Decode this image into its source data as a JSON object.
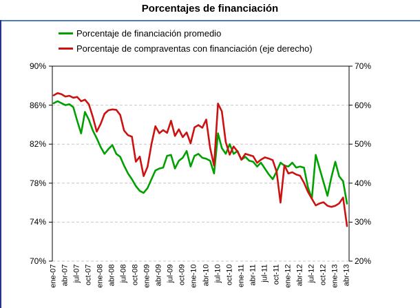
{
  "title": "Porcentajes de financiación",
  "colors": {
    "green_series": "#00A000",
    "red_series": "#CC1111",
    "title_rule_blue": "#4A7EBB",
    "panel_border_blue": "#27348B",
    "gridline_gray": "#C6C6C6",
    "axis_black": "#000000"
  },
  "legend": [
    {
      "label": "Porcentaje de financiación promedio",
      "color": "#00A000"
    },
    {
      "label": "Porcentaje de compraventas con financiación (eje derecho)",
      "color": "#CC1111"
    }
  ],
  "chart_data": {
    "type": "line",
    "x_tick_labels": [
      "ene-07",
      "abr-07",
      "jul-07",
      "oct-07",
      "ene-08",
      "abr-08",
      "jul-08",
      "oct-08",
      "ene-09",
      "abr-09",
      "jul-09",
      "oct-09",
      "ene-10",
      "abr-10",
      "jul-10",
      "oct-10",
      "ene-11",
      "abr-11",
      "jul-11",
      "oct-11",
      "ene-12",
      "abr-12",
      "jul-12",
      "oct-12",
      "ene-13",
      "abr-13"
    ],
    "points_per_tick": 3,
    "x_resolution": "monthly, ene-07 to abr-13 (76 points)",
    "left_axis": {
      "min": 70,
      "max": 90,
      "tick_values": [
        90,
        86,
        82,
        78,
        74,
        70
      ],
      "tick_labels": [
        "90%",
        "86%",
        "82%",
        "78%",
        "74%",
        "70%"
      ]
    },
    "right_axis": {
      "min": 20,
      "max": 70,
      "tick_values": [
        70,
        60,
        50,
        40,
        30,
        20
      ],
      "tick_labels": [
        "70%",
        "60%",
        "50%",
        "40%",
        "30%",
        "20%"
      ]
    },
    "grid": "dashed horizontal gridlines, solid top border, legend top-left",
    "series": [
      {
        "name": "Porcentaje de financiación promedio",
        "axis": "left",
        "color": "#00A000",
        "values": [
          86.2,
          86.4,
          86.2,
          86.0,
          86.1,
          85.8,
          84.4,
          83.1,
          85.3,
          84.5,
          83.4,
          82.6,
          81.7,
          81.0,
          81.5,
          81.9,
          81.0,
          80.7,
          79.8,
          79.0,
          78.4,
          77.7,
          77.2,
          77.0,
          77.5,
          78.4,
          79.3,
          79.5,
          79.6,
          80.8,
          80.9,
          79.5,
          80.3,
          80.6,
          81.3,
          79.7,
          80.8,
          81.0,
          80.6,
          80.5,
          80.3,
          79.0,
          83.1,
          81.6,
          81.0,
          82.0,
          81.0,
          81.3,
          80.4,
          80.7,
          80.3,
          80.2,
          79.7,
          80.1,
          79.5,
          78.9,
          78.4,
          79.2,
          80.1,
          79.8,
          79.7,
          80.1,
          79.6,
          79.7,
          79.6,
          77.6,
          76.4,
          80.9,
          79.5,
          78.1,
          76.7,
          78.6,
          80.2,
          78.7,
          78.2,
          75.9
        ]
      },
      {
        "name": "Porcentaje de compraventas con financiación",
        "axis": "right",
        "color": "#CC1111",
        "values": [
          62.5,
          63.1,
          62.8,
          62.2,
          62.4,
          61.9,
          62.1,
          61.0,
          61.4,
          60.2,
          57.0,
          53.2,
          55.2,
          57.8,
          58.7,
          58.9,
          58.8,
          57.5,
          53.5,
          52.3,
          51.9,
          45.5,
          46.8,
          41.8,
          44.2,
          50.0,
          54.6,
          52.8,
          53.6,
          52.9,
          56.0,
          52.1,
          53.8,
          51.8,
          53.0,
          50.2,
          54.3,
          54.9,
          54.2,
          56.3,
          49.0,
          44.5,
          60.4,
          58.4,
          50.5,
          47.3,
          49.4,
          48.1,
          46.0,
          47.5,
          47.2,
          46.9,
          45.2,
          46.0,
          46.6,
          46.3,
          45.9,
          42.9,
          35.0,
          44.6,
          42.5,
          42.8,
          42.2,
          41.9,
          40.1,
          37.8,
          36.0,
          34.3,
          34.8,
          35.1,
          34.2,
          33.9,
          34.2,
          34.8,
          36.3,
          29.0
        ]
      }
    ]
  }
}
